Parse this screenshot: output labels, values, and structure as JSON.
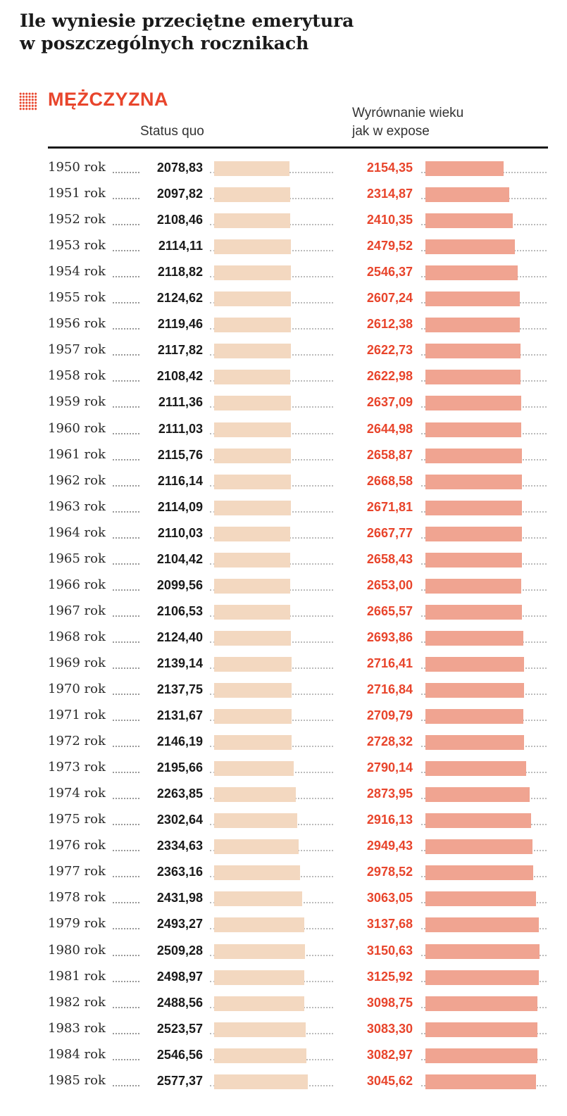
{
  "title": [
    "Ile wyniesie przeciętne emerytura",
    "w poszczególnych rocznikach"
  ],
  "section": "MĘŻCZYZNA",
  "columns": {
    "status_quo": "Status quo",
    "expose": [
      "Wyrównanie wieku",
      "jak w expose"
    ]
  },
  "colors": {
    "accent": "#e8452c",
    "bar_status_quo": "#f3d8c0",
    "bar_expose": "#f0a491"
  },
  "chart_data": {
    "type": "bar",
    "orientation": "horizontal",
    "title": "Ile wyniesie przeciętne emerytura w poszczególnych rocznikach",
    "subtitle": "MĘŻCZYZNA",
    "categories": [
      "1950 rok",
      "1951 rok",
      "1952 rok",
      "1953 rok",
      "1954 rok",
      "1955 rok",
      "1956 rok",
      "1957 rok",
      "1958 rok",
      "1959 rok",
      "1960 rok",
      "1961 rok",
      "1962 rok",
      "1963 rok",
      "1964 rok",
      "1965 rok",
      "1966 rok",
      "1967 rok",
      "1968 rok",
      "1969 rok",
      "1970 rok",
      "1971 rok",
      "1972 rok",
      "1973 rok",
      "1974 rok",
      "1975 rok",
      "1976 rok",
      "1977 rok",
      "1978 rok",
      "1979 rok",
      "1980 rok",
      "1981 rok",
      "1982 rok",
      "1983 rok",
      "1984 rok",
      "1985 rok"
    ],
    "series": [
      {
        "name": "Status quo",
        "values": [
          2078.83,
          2097.82,
          2108.46,
          2114.11,
          2118.82,
          2124.62,
          2119.46,
          2117.82,
          2108.42,
          2111.36,
          2111.03,
          2115.76,
          2116.14,
          2114.09,
          2110.03,
          2104.42,
          2099.56,
          2106.53,
          2124.4,
          2139.14,
          2137.75,
          2131.67,
          2146.19,
          2195.66,
          2263.85,
          2302.64,
          2334.63,
          2363.16,
          2431.98,
          2493.27,
          2509.28,
          2498.97,
          2488.56,
          2523.57,
          2546.56,
          2577.37
        ],
        "labels": [
          "2078,83",
          "2097,82",
          "2108,46",
          "2114,11",
          "2118,82",
          "2124,62",
          "2119,46",
          "2117,82",
          "2108,42",
          "2111,36",
          "2111,03",
          "2115,76",
          "2116,14",
          "2114,09",
          "2110,03",
          "2104,42",
          "2099,56",
          "2106,53",
          "2124,40",
          "2139,14",
          "2137,75",
          "2131,67",
          "2146,19",
          "2195,66",
          "2263,85",
          "2302,64",
          "2334,63",
          "2363,16",
          "2431,98",
          "2493,27",
          "2509,28",
          "2498,97",
          "2488,56",
          "2523,57",
          "2546,56",
          "2577,37"
        ]
      },
      {
        "name": "Wyrównanie wieku jak w expose",
        "values": [
          2154.35,
          2314.87,
          2410.35,
          2479.52,
          2546.37,
          2607.24,
          2612.38,
          2622.73,
          2622.98,
          2637.09,
          2644.98,
          2658.87,
          2668.58,
          2671.81,
          2667.77,
          2658.43,
          2653.0,
          2665.57,
          2693.86,
          2716.41,
          2716.84,
          2709.79,
          2728.32,
          2790.14,
          2873.95,
          2916.13,
          2949.43,
          2978.52,
          3063.05,
          3137.68,
          3150.63,
          3125.92,
          3098.75,
          3083.3,
          3082.97,
          3045.62
        ],
        "labels": [
          "2154,35",
          "2314,87",
          "2410,35",
          "2479,52",
          "2546,37",
          "2607,24",
          "2612,38",
          "2622,73",
          "2622,98",
          "2637,09",
          "2644,98",
          "2658,87",
          "2668,58",
          "2671,81",
          "2667,77",
          "2658,43",
          "2653,00",
          "2665,57",
          "2693,86",
          "2716,41",
          "2716,84",
          "2709,79",
          "2728,32",
          "2790,14",
          "2873,95",
          "2916,13",
          "2949,43",
          "2978,52",
          "3063,05",
          "3137,68",
          "3150,63",
          "3125,92",
          "3098,75",
          "3083,30",
          "3082,97",
          "3045,62"
        ]
      }
    ],
    "xlim": [
      0,
      3150.63
    ]
  }
}
